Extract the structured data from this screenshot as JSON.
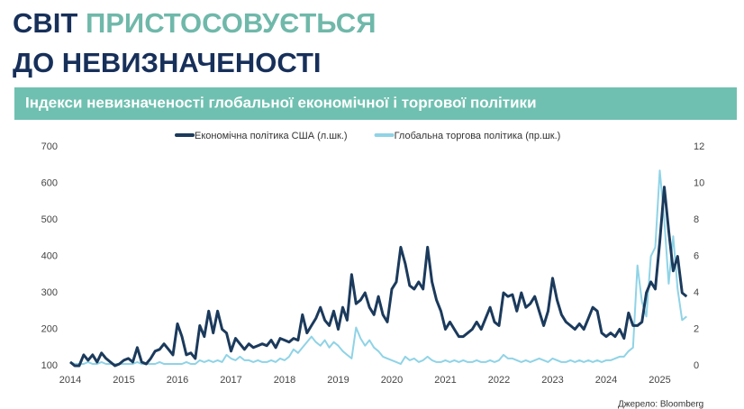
{
  "slide": {
    "title_word1": "СВІТ",
    "title_word2": "ПРИСТОСОВУЄТЬСЯ",
    "title_line2": "ДО НЕВИЗНАЧЕНОСТІ",
    "source": "Джерело: Bloomberg"
  },
  "chart_data": {
    "type": "line",
    "title": "Індекси невизначеності глобальної економічної і торгової політики",
    "categories": [
      "2014",
      null,
      null,
      null,
      null,
      null,
      null,
      null,
      null,
      null,
      null,
      null,
      "2015",
      null,
      null,
      null,
      null,
      null,
      null,
      null,
      null,
      null,
      null,
      null,
      "2016",
      null,
      null,
      null,
      null,
      null,
      null,
      null,
      null,
      null,
      null,
      null,
      "2017",
      null,
      null,
      null,
      null,
      null,
      null,
      null,
      null,
      null,
      null,
      null,
      "2018",
      null,
      null,
      null,
      null,
      null,
      null,
      null,
      null,
      null,
      null,
      null,
      "2019",
      null,
      null,
      null,
      null,
      null,
      null,
      null,
      null,
      null,
      null,
      null,
      "2020",
      null,
      null,
      null,
      null,
      null,
      null,
      null,
      null,
      null,
      null,
      null,
      "2021",
      null,
      null,
      null,
      null,
      null,
      null,
      null,
      null,
      null,
      null,
      null,
      "2022",
      null,
      null,
      null,
      null,
      null,
      null,
      null,
      null,
      null,
      null,
      null,
      "2023",
      null,
      null,
      null,
      null,
      null,
      null,
      null,
      null,
      null,
      null,
      null,
      "2024",
      null,
      null,
      null,
      null,
      null,
      null,
      null,
      null,
      null,
      null,
      null,
      "2025",
      null,
      null,
      null,
      null,
      null,
      null
    ],
    "series": [
      {
        "name": "Економічна політика США (л.шк.)",
        "color": "#1b3a5c",
        "axis": "y",
        "values": [
          110,
          100,
          100,
          130,
          115,
          130,
          110,
          135,
          120,
          110,
          100,
          105,
          115,
          120,
          110,
          150,
          110,
          105,
          120,
          140,
          145,
          160,
          145,
          130,
          215,
          180,
          130,
          135,
          120,
          210,
          180,
          250,
          190,
          250,
          200,
          190,
          140,
          175,
          160,
          145,
          160,
          150,
          155,
          160,
          155,
          170,
          150,
          175,
          170,
          165,
          175,
          170,
          240,
          190,
          210,
          230,
          260,
          225,
          210,
          250,
          200,
          260,
          225,
          350,
          270,
          280,
          300,
          260,
          240,
          290,
          240,
          220,
          310,
          330,
          425,
          380,
          320,
          310,
          330,
          310,
          425,
          330,
          280,
          250,
          200,
          220,
          200,
          180,
          180,
          190,
          200,
          220,
          200,
          230,
          260,
          220,
          210,
          300,
          290,
          295,
          250,
          300,
          260,
          270,
          290,
          250,
          210,
          250,
          340,
          280,
          240,
          220,
          210,
          200,
          215,
          200,
          230,
          260,
          250,
          190,
          180,
          190,
          180,
          200,
          175,
          245,
          210,
          210,
          220,
          300,
          330,
          310,
          440,
          590,
          470,
          360,
          400,
          300,
          290
        ]
      },
      {
        "name": "Глобальна торгова політика (пр.шк.)",
        "color": "#8fd3e6",
        "axis": "y2",
        "values": [
          0.2,
          0.1,
          0.1,
          0.1,
          0.2,
          0.1,
          0.1,
          0.2,
          0.1,
          0.1,
          0.1,
          0.1,
          0.1,
          0.1,
          0.1,
          0.2,
          0.1,
          0.1,
          0.1,
          0.1,
          0.2,
          0.1,
          0.1,
          0.1,
          0.1,
          0.1,
          0.2,
          0.1,
          0.1,
          0.3,
          0.2,
          0.3,
          0.2,
          0.3,
          0.2,
          0.6,
          0.4,
          0.3,
          0.5,
          0.3,
          0.3,
          0.2,
          0.3,
          0.2,
          0.2,
          0.3,
          0.2,
          0.4,
          0.3,
          0.5,
          0.9,
          0.7,
          1.0,
          1.3,
          1.6,
          1.3,
          1.1,
          1.4,
          1.0,
          1.3,
          1.1,
          0.8,
          0.6,
          0.4,
          2.1,
          1.5,
          1.1,
          1.4,
          1.0,
          0.8,
          0.5,
          0.4,
          0.3,
          0.2,
          0.1,
          0.5,
          0.3,
          0.4,
          0.2,
          0.3,
          0.5,
          0.3,
          0.2,
          0.2,
          0.3,
          0.2,
          0.3,
          0.2,
          0.3,
          0.2,
          0.2,
          0.3,
          0.2,
          0.2,
          0.3,
          0.2,
          0.3,
          0.6,
          0.4,
          0.4,
          0.3,
          0.2,
          0.3,
          0.2,
          0.3,
          0.4,
          0.3,
          0.2,
          0.4,
          0.3,
          0.2,
          0.2,
          0.3,
          0.2,
          0.3,
          0.2,
          0.3,
          0.2,
          0.3,
          0.2,
          0.3,
          0.3,
          0.4,
          0.5,
          0.5,
          0.8,
          1.0,
          5.5,
          3.5,
          2.7,
          6.0,
          6.5,
          10.7,
          8.0,
          4.5,
          7.1,
          4.2,
          2.5,
          2.7
        ]
      }
    ],
    "ylim": [
      100,
      700
    ],
    "yticks": [
      100,
      200,
      300,
      400,
      500,
      600,
      700
    ],
    "y2lim": [
      0,
      12
    ],
    "y2ticks": [
      0,
      2,
      4,
      6,
      8,
      10,
      12
    ],
    "grid": false
  }
}
